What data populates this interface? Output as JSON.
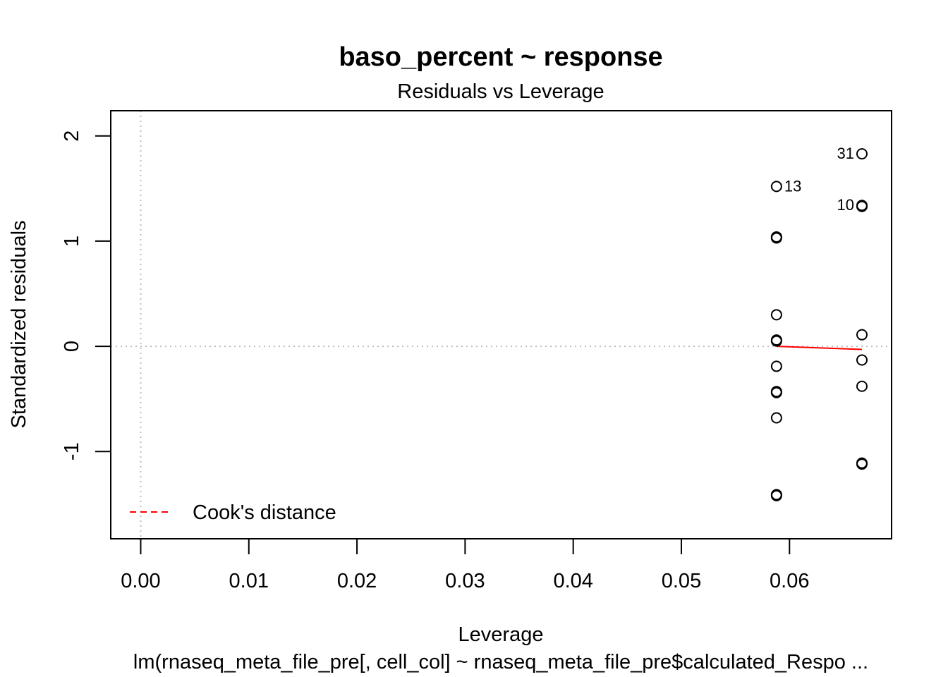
{
  "chart_data": {
    "type": "scatter",
    "title": "baso_percent ~ response",
    "subtitle": "Residuals vs Leverage",
    "xlabel": "Leverage",
    "ylabel": "Standardized residuals",
    "caption": "lm(rnaseq_meta_file_pre[, cell_col] ~ rnaseq_meta_file_pre$calculated_Respo ...",
    "xlim": [
      -0.00277,
      0.06944
    ],
    "ylim": [
      -1.83,
      2.24
    ],
    "x_ticks": [
      "0.00",
      "0.01",
      "0.02",
      "0.03",
      "0.04",
      "0.05",
      "0.06"
    ],
    "x_tick_values": [
      0.0,
      0.01,
      0.02,
      0.03,
      0.04,
      0.05,
      0.06
    ],
    "y_ticks": [
      "-1",
      "0",
      "1",
      "2"
    ],
    "y_tick_values": [
      -1,
      0,
      1,
      2
    ],
    "grid": false,
    "reference_lines": {
      "x": 0,
      "y": 0,
      "style": "dotted",
      "color": "#bebebe"
    },
    "points": [
      {
        "x": 0.0588,
        "y": 1.52,
        "label": "13"
      },
      {
        "x": 0.0588,
        "y": 1.04,
        "label": ""
      },
      {
        "x": 0.0588,
        "y": 1.03,
        "label": ""
      },
      {
        "x": 0.0588,
        "y": 0.3,
        "label": ""
      },
      {
        "x": 0.0588,
        "y": 0.06,
        "label": ""
      },
      {
        "x": 0.0588,
        "y": 0.05,
        "label": ""
      },
      {
        "x": 0.0588,
        "y": -0.19,
        "label": ""
      },
      {
        "x": 0.0588,
        "y": -0.43,
        "label": ""
      },
      {
        "x": 0.0588,
        "y": -0.44,
        "label": ""
      },
      {
        "x": 0.0588,
        "y": -0.68,
        "label": ""
      },
      {
        "x": 0.0588,
        "y": -1.41,
        "label": ""
      },
      {
        "x": 0.0588,
        "y": -1.42,
        "label": ""
      },
      {
        "x": 0.0667,
        "y": 1.83,
        "label": "31"
      },
      {
        "x": 0.0667,
        "y": 1.34,
        "label": "10"
      },
      {
        "x": 0.0667,
        "y": 1.33,
        "label": ""
      },
      {
        "x": 0.0667,
        "y": 0.11,
        "label": ""
      },
      {
        "x": 0.0667,
        "y": -0.13,
        "label": ""
      },
      {
        "x": 0.0667,
        "y": -0.38,
        "label": ""
      },
      {
        "x": 0.0667,
        "y": -1.11,
        "label": ""
      },
      {
        "x": 0.0667,
        "y": -1.12,
        "label": ""
      }
    ],
    "smooth_line": {
      "color": "#ff0000",
      "points": [
        [
          0.0588,
          0.0
        ],
        [
          0.0667,
          -0.03
        ]
      ]
    },
    "legend": {
      "placement": "bottom-left",
      "entries": [
        {
          "label": "Cook's distance",
          "color": "#ff0000",
          "style": "dashed"
        }
      ]
    },
    "colors": {
      "points": "#000000",
      "smooth": "#ff0000",
      "reference": "#bebebe"
    }
  }
}
